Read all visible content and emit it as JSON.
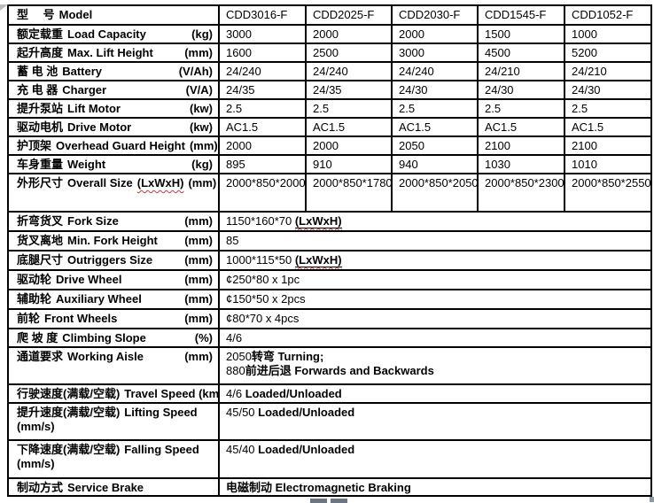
{
  "table": {
    "header": {
      "label_zh": "型　 号",
      "label_en": "Model",
      "models": [
        "CDD3016-F",
        "CDD2025-F",
        "CDD2030-F",
        "CDD1545-F",
        "CDD1052-F"
      ]
    },
    "rows": [
      {
        "label": {
          "zh": "额定载重",
          "en": "Load Capacity",
          "unit": "(kg)"
        },
        "values": [
          "3000",
          "2000",
          "2000",
          "1500",
          "1000"
        ]
      },
      {
        "label": {
          "zh": "起升高度",
          "en": "Max. Lift Height",
          "unit": "(mm)"
        },
        "values": [
          "1600",
          "2500",
          "3000",
          "4500",
          "5200"
        ]
      },
      {
        "label": {
          "zh": "蓄 电 池",
          "en": "Battery",
          "unit": "(V/Ah)"
        },
        "values": [
          "24/240",
          "24/240",
          "24/240",
          "24/210",
          "24/210"
        ]
      },
      {
        "label": {
          "zh": "充 电 器",
          "en": "Charger",
          "unit": "(V/A)"
        },
        "values": [
          "24/35",
          "24/35",
          "24/30",
          "24/30",
          "24/30"
        ]
      },
      {
        "label": {
          "zh": "提升泵站",
          "en": "Lift Motor",
          "unit": "(kw)"
        },
        "values": [
          "2.5",
          "2.5",
          "2.5",
          "2.5",
          "2.5"
        ]
      },
      {
        "label": {
          "zh": "驱动电机",
          "en": "Drive Motor",
          "unit": "(kw)"
        },
        "values": [
          "AC1.5",
          "AC1.5",
          "AC1.5",
          "AC1.5",
          "AC1.5"
        ]
      },
      {
        "label": {
          "zh": "护顶架",
          "en": "Overhead Guard Height",
          "unit": "(mm)"
        },
        "values": [
          "2000",
          "2000",
          "2050",
          "2100",
          "2100"
        ]
      },
      {
        "label": {
          "zh": "车身重量",
          "en": "Weight",
          "unit": "(kg)"
        },
        "values": [
          "895",
          "910",
          "940",
          "1030",
          "1010"
        ]
      },
      {
        "label": {
          "zh": "外形尺寸",
          "en": "Overall Size",
          "en_wavy": "(LxWxH)",
          "unit": "(mm)"
        },
        "values": [
          "2000*850*2000",
          "2000*850*1780",
          "2000*850*2050",
          "2000*850*2300",
          "2000*850*2550"
        ]
      },
      {
        "label": {
          "zh": "折弯货叉",
          "en": "Fork Size",
          "unit": "(mm)"
        },
        "lines": [
          [
            {
              "t": "1150*160*70 "
            },
            {
              "t": "(LxWxH)",
              "b": true,
              "wavy": true,
              "u": true
            }
          ]
        ]
      },
      {
        "label": {
          "zh": "货叉离地",
          "en": "Min. Fork Height",
          "unit": "(mm)"
        },
        "lines": [
          [
            {
              "t": "85"
            }
          ]
        ]
      },
      {
        "label": {
          "zh": "底腿尺寸",
          "en": "Outriggers Size",
          "unit": "(mm)"
        },
        "lines": [
          [
            {
              "t": "1000*115*50 "
            },
            {
              "t": "(LxWxH)",
              "b": true,
              "wavy": true,
              "u": true
            }
          ]
        ]
      },
      {
        "label": {
          "zh": "驱动轮",
          "en": "Drive Wheel",
          "unit": "(mm)"
        },
        "lines": [
          [
            {
              "t": "¢250*80 x 1pc"
            }
          ]
        ]
      },
      {
        "label": {
          "zh": "辅助轮",
          "en": "Auxiliary Wheel",
          "unit": "(mm)"
        },
        "lines": [
          [
            {
              "t": "¢150*50 x 2pcs"
            }
          ]
        ]
      },
      {
        "label": {
          "zh": "前轮",
          "en": "Front Wheels",
          "unit": "(mm)"
        },
        "lines": [
          [
            {
              "t": "¢80*70 x 4pcs"
            }
          ]
        ]
      },
      {
        "label": {
          "zh": "爬 坡 度",
          "en": "Climbing Slope",
          "unit": "(%)"
        },
        "lines": [
          [
            {
              "t": "4/6"
            }
          ]
        ]
      },
      {
        "label": {
          "zh": "通道要求",
          "en": "Working Aisle",
          "unit": "(mm)"
        },
        "lines": [
          [
            {
              "t": "2050"
            },
            {
              "t": "转弯 ",
              "zh": true
            },
            {
              "t": "Turning;",
              "b": true
            }
          ],
          [
            {
              "t": "880"
            },
            {
              "t": "前进后退 ",
              "zh": true
            },
            {
              "t": "Forwards and Backwards",
              "b": true
            }
          ]
        ]
      },
      {
        "label": {
          "zh": "行驶速度(满载/空载)",
          "en": "Travel Speed (km/h)"
        },
        "lines": [
          [
            {
              "t": "4/6 "
            },
            {
              "t": "Loaded/Unloaded",
              "b": true
            }
          ]
        ]
      },
      {
        "label": {
          "zh": "提升速度(满载/空载)",
          "en": "Lifting Speed",
          "line2": "(mm/s)"
        },
        "lines": [
          [
            {
              "t": "45/50 "
            },
            {
              "t": "Loaded/Unloaded",
              "b": true
            }
          ]
        ]
      },
      {
        "label": {
          "zh": "下降速度(满载/空载)",
          "en": "Falling Speed",
          "line2": "(mm/s)"
        },
        "lines": [
          [
            {
              "t": "45/40 "
            },
            {
              "t": "Loaded/Unloaded",
              "b": true
            }
          ]
        ]
      },
      {
        "label": {
          "zh": "制动方式",
          "en": "Service Brake"
        },
        "lines": [
          [
            {
              "t": "电磁制动 ",
              "zh": true
            },
            {
              "t": "Electromagnetic Braking",
              "b": true
            }
          ]
        ]
      }
    ]
  }
}
